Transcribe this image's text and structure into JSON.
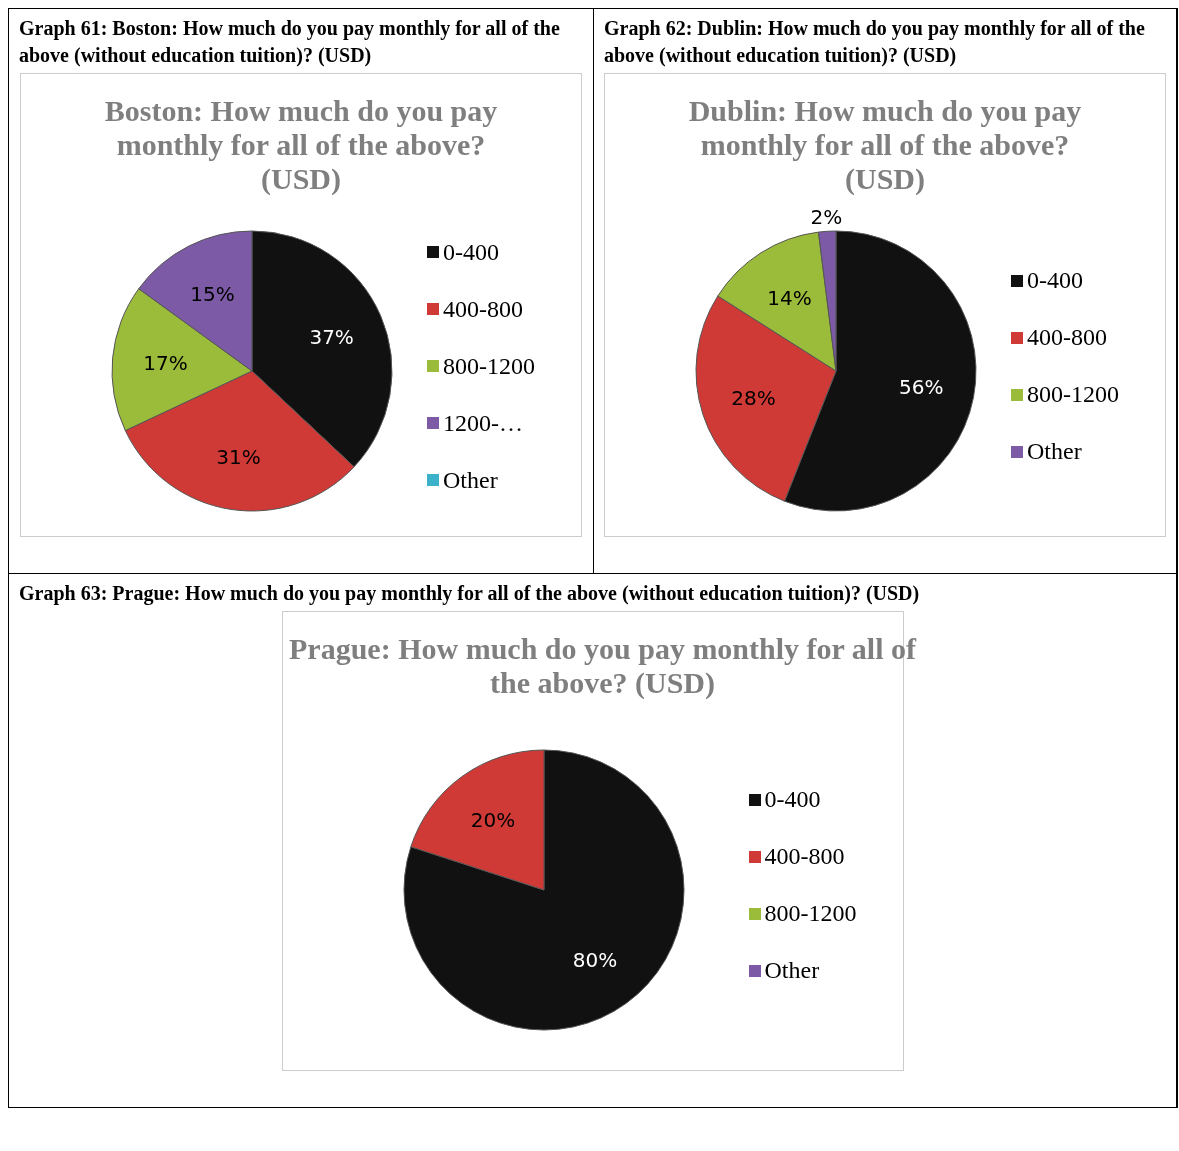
{
  "chart_data": [
    {
      "type": "pie",
      "title": "Boston: How much do you pay monthly for all of the above? (USD)",
      "annotations": [
        "Graph 61: Boston: How much do you pay monthly for all of the above (without education tuition)? (USD)"
      ],
      "categories": [
        "0-400",
        "400-800",
        "800-1200",
        "1200-…",
        "Other"
      ],
      "values": [
        37,
        31,
        17,
        15,
        0
      ],
      "colors": [
        "#111111",
        "#d03a36",
        "#9bbb3b",
        "#7d5aa6",
        "#3bb2c9"
      ],
      "value_labels": [
        "37%",
        "31%",
        "17%",
        "15%",
        null
      ],
      "legend": "right"
    },
    {
      "type": "pie",
      "title": "Dublin: How much do you pay monthly for all of the above? (USD)",
      "annotations": [
        "Graph 62: Dublin: How much do you pay monthly for all of the above (without education tuition)? (USD)"
      ],
      "categories": [
        "0-400",
        "400-800",
        "800-1200",
        "Other"
      ],
      "values": [
        56,
        28,
        14,
        2
      ],
      "colors": [
        "#111111",
        "#d03a36",
        "#9bbb3b",
        "#7d5aa6"
      ],
      "value_labels": [
        "56%",
        "28%",
        "14%",
        "2%"
      ],
      "legend": "right"
    },
    {
      "type": "pie",
      "title": "Prague: How much do you pay monthly for all of the above? (USD)",
      "annotations": [
        "Graph 63: Prague: How much do you pay monthly for all of the above (without education tuition)? (USD)"
      ],
      "categories": [
        "0-400",
        "400-800",
        "800-1200",
        "Other"
      ],
      "values": [
        80,
        20,
        0,
        0
      ],
      "colors": [
        "#111111",
        "#d03a36",
        "#9bbb3b",
        "#7d5aa6"
      ],
      "value_labels": [
        "80%",
        "20%",
        null,
        null
      ],
      "legend": "right"
    }
  ]
}
